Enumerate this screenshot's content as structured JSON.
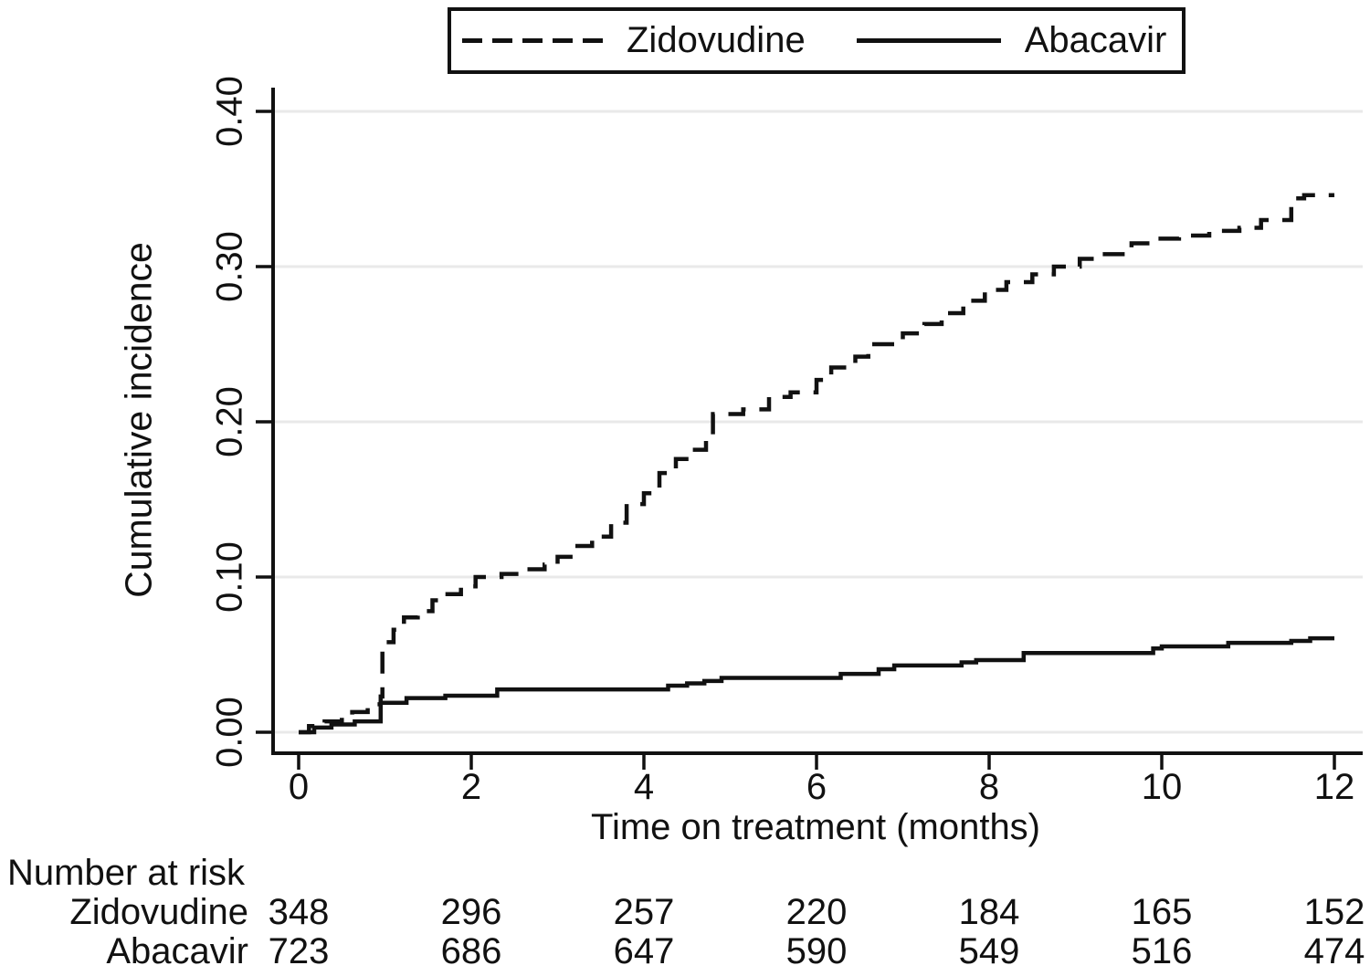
{
  "figure": {
    "background": "#ffffff",
    "text_color": "#111111",
    "gridline_color": "#e9e9e9",
    "line_color": "#111111"
  },
  "legend": {
    "items": [
      {
        "label": "Zidovudine",
        "line_style": "dashed"
      },
      {
        "label": "Abacavir",
        "line_style": "solid"
      }
    ]
  },
  "chart_data": {
    "type": "line",
    "subtype": "step",
    "title": "",
    "xlabel": "Time on treatment (months)",
    "ylabel": "Cumulative incidence",
    "xlim": [
      0,
      12
    ],
    "ylim": [
      0,
      0.4
    ],
    "xticks": [
      0,
      2,
      4,
      6,
      8,
      10,
      12
    ],
    "ytick_values": [
      0.0,
      0.1,
      0.2,
      0.3,
      0.4
    ],
    "ytick_labels": [
      "0.00",
      "0.10",
      "0.20",
      "0.30",
      "0.40"
    ],
    "grid": "horizontal",
    "legend_position": "top-center",
    "series": [
      {
        "name": "Zidovudine",
        "style": "dashed",
        "color": "#111111",
        "points": [
          [
            0,
            0
          ],
          [
            0.12,
            0.004
          ],
          [
            0.3,
            0.007
          ],
          [
            0.5,
            0.01
          ],
          [
            0.62,
            0.013
          ],
          [
            0.8,
            0.018
          ],
          [
            0.95,
            0.023
          ],
          [
            0.97,
            0.058
          ],
          [
            1.1,
            0.066
          ],
          [
            1.22,
            0.074
          ],
          [
            1.38,
            0.078
          ],
          [
            1.55,
            0.085
          ],
          [
            1.7,
            0.089
          ],
          [
            1.88,
            0.094
          ],
          [
            2.05,
            0.1
          ],
          [
            2.35,
            0.102
          ],
          [
            2.6,
            0.105
          ],
          [
            2.85,
            0.108
          ],
          [
            3.0,
            0.113
          ],
          [
            3.2,
            0.12
          ],
          [
            3.4,
            0.126
          ],
          [
            3.62,
            0.135
          ],
          [
            3.8,
            0.147
          ],
          [
            4.0,
            0.154
          ],
          [
            4.18,
            0.167
          ],
          [
            4.37,
            0.176
          ],
          [
            4.55,
            0.182
          ],
          [
            4.72,
            0.188
          ],
          [
            4.8,
            0.205
          ],
          [
            5.15,
            0.208
          ],
          [
            5.45,
            0.216
          ],
          [
            5.7,
            0.219
          ],
          [
            6.0,
            0.227
          ],
          [
            6.17,
            0.235
          ],
          [
            6.45,
            0.242
          ],
          [
            6.6,
            0.25
          ],
          [
            7.0,
            0.257
          ],
          [
            7.25,
            0.263
          ],
          [
            7.45,
            0.27
          ],
          [
            7.7,
            0.278
          ],
          [
            7.95,
            0.285
          ],
          [
            8.2,
            0.29
          ],
          [
            8.5,
            0.295
          ],
          [
            8.75,
            0.3
          ],
          [
            9.05,
            0.305
          ],
          [
            9.3,
            0.308
          ],
          [
            9.65,
            0.315
          ],
          [
            9.9,
            0.318
          ],
          [
            10.2,
            0.32
          ],
          [
            10.55,
            0.323
          ],
          [
            10.9,
            0.325
          ],
          [
            11.15,
            0.33
          ],
          [
            11.5,
            0.344
          ],
          [
            11.65,
            0.346
          ],
          [
            12,
            0.346
          ]
        ]
      },
      {
        "name": "Abacavir",
        "style": "solid",
        "color": "#111111",
        "points": [
          [
            0,
            0
          ],
          [
            0.18,
            0.003
          ],
          [
            0.38,
            0.005
          ],
          [
            0.65,
            0.007
          ],
          [
            0.95,
            0.019
          ],
          [
            1.25,
            0.022
          ],
          [
            1.7,
            0.0235
          ],
          [
            2.3,
            0.0276
          ],
          [
            4.28,
            0.03
          ],
          [
            4.5,
            0.0315
          ],
          [
            4.7,
            0.033
          ],
          [
            4.9,
            0.035
          ],
          [
            6.28,
            0.0376
          ],
          [
            6.72,
            0.0406
          ],
          [
            6.9,
            0.043
          ],
          [
            7.68,
            0.045
          ],
          [
            7.85,
            0.0465
          ],
          [
            8.4,
            0.051
          ],
          [
            9.9,
            0.054
          ],
          [
            10.0,
            0.0553
          ],
          [
            10.77,
            0.0576
          ],
          [
            11.5,
            0.0588
          ],
          [
            11.72,
            0.0605
          ],
          [
            12,
            0.0605
          ]
        ]
      }
    ]
  },
  "risk_table": {
    "title": "Number at risk",
    "times": [
      0,
      2,
      4,
      6,
      8,
      10,
      12
    ],
    "rows": [
      {
        "label": "Zidovudine",
        "counts": [
          "348",
          "296",
          "257",
          "220",
          "184",
          "165",
          "152"
        ]
      },
      {
        "label": "Abacavir",
        "counts": [
          "723",
          "686",
          "647",
          "590",
          "549",
          "516",
          "474"
        ]
      }
    ]
  }
}
